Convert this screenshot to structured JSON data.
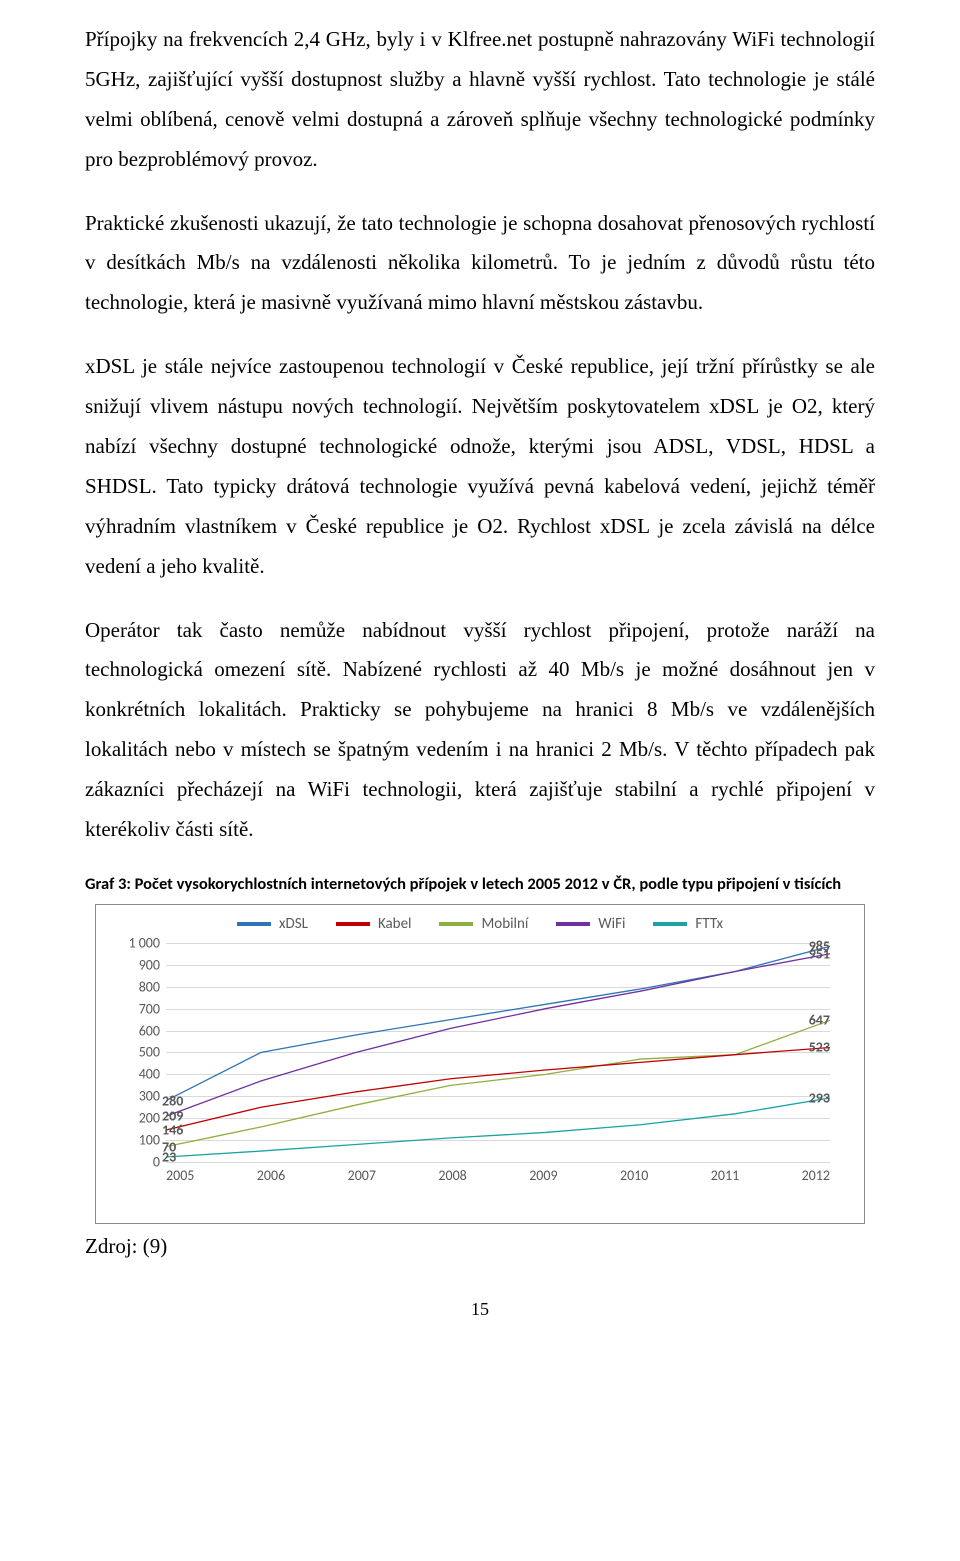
{
  "paragraphs": {
    "p1": "Přípojky na frekvencích 2,4 GHz, byly i v Klfree.net postupně nahrazovány WiFi technologií 5GHz, zajišťující vyšší dostupnost služby a hlavně vyšší rychlost. Tato technologie je stálé velmi oblíbená, cenově velmi dostupná a zároveň splňuje všechny technologické podmínky pro bezproblémový provoz.",
    "p2": "Praktické zkušenosti ukazují, že tato technologie je schopna dosahovat přenosových rychlostí v desítkách Mb/s na vzdálenosti několika kilometrů. To je jedním z důvodů růstu této technologie, která je masivně využívaná mimo hlavní městskou zástavbu.",
    "p3": "xDSL je stále nejvíce zastoupenou technologií v České republice, její tržní přírůstky se ale snižují vlivem nástupu nových technologií. Největším poskytovatelem xDSL je O2, který nabízí všechny dostupné technologické odnože, kterými jsou ADSL, VDSL, HDSL a SHDSL. Tato typicky drátová technologie využívá pevná kabelová vedení, jejichž téměř výhradním vlastníkem v České republice je O2. Rychlost xDSL je zcela závislá na délce vedení a jeho kvalitě.",
    "p4": "Operátor tak často nemůže nabídnout vyšší rychlost připojení, protože naráží na technologická omezení sítě. Nabízené rychlosti až 40 Mb/s je možné dosáhnout jen v konkrétních lokalitách. Prakticky se pohybujeme na hranici 8 Mb/s ve vzdálenějších lokalitách nebo v místech se špatným vedením i na hranici 2 Mb/s. V těchto případech pak zákazníci přecházejí na WiFi technologii, která zajišťuje stabilní a rychlé připojení v kterékoliv části sítě."
  },
  "chart": {
    "caption": "Graf 3: Počet vysokorychlostních internetových přípojek v letech 2005 2012 v ČR, podle typu připojení v tisících",
    "type": "line",
    "font_family": "Calibri",
    "background_color": "#ffffff",
    "border_color": "#8a8a8a",
    "grid_color": "#d9d9d9",
    "text_color": "#595959",
    "line_width": 3.2,
    "legend": [
      {
        "label": "xDSL",
        "color": "#2e75b6"
      },
      {
        "label": "Kabel",
        "color": "#c00000"
      },
      {
        "label": "Mobilní",
        "color": "#8faf3f"
      },
      {
        "label": "WiFi",
        "color": "#7030a0"
      },
      {
        "label": "FTTx",
        "color": "#1aa3a3"
      }
    ],
    "x": {
      "categories": [
        "2005",
        "2006",
        "2007",
        "2008",
        "2009",
        "2010",
        "2011",
        "2012"
      ]
    },
    "y": {
      "min": 0,
      "max": 1000,
      "ticks": [
        0,
        100,
        200,
        300,
        400,
        500,
        600,
        700,
        800,
        900,
        1000
      ]
    },
    "series": {
      "xDSL": {
        "color": "#2e75b6",
        "values": [
          280,
          500,
          580,
          650,
          720,
          790,
          870,
          985
        ]
      },
      "WiFi": {
        "color": "#7030a0",
        "values": [
          209,
          370,
          500,
          610,
          700,
          780,
          870,
          951
        ]
      },
      "Mobilní": {
        "color": "#8faf3f",
        "values": [
          70,
          160,
          260,
          350,
          400,
          470,
          490,
          647
        ]
      },
      "Kabel": {
        "color": "#c00000",
        "values": [
          146,
          250,
          320,
          380,
          420,
          455,
          490,
          523
        ]
      },
      "FTTx": {
        "color": "#1aa3a3",
        "values": [
          23,
          50,
          80,
          110,
          135,
          170,
          220,
          293
        ]
      }
    },
    "first_labels": [
      {
        "text": "280",
        "series": "xDSL"
      },
      {
        "text": "209",
        "series": "WiFi"
      },
      {
        "text": "146",
        "series": "Kabel"
      },
      {
        "text": "70",
        "series": "Mobilní"
      },
      {
        "text": "23",
        "series": "FTTx"
      }
    ],
    "last_labels": [
      {
        "text": "985",
        "series": "xDSL"
      },
      {
        "text": "951",
        "series": "WiFi"
      },
      {
        "text": "647",
        "series": "Mobilní"
      },
      {
        "text": "523",
        "series": "Kabel"
      },
      {
        "text": "293",
        "series": "FTTx"
      }
    ]
  },
  "source": "Zdroj: (9)",
  "page_number": "15"
}
